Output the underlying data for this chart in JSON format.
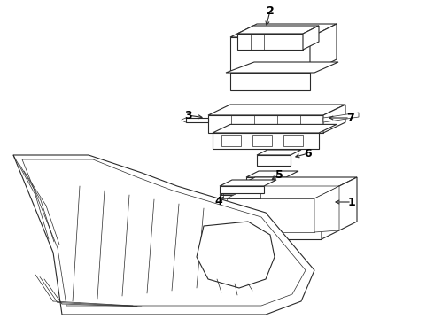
{
  "background_color": "#ffffff",
  "line_color": "#2a2a2a",
  "fig_width": 4.9,
  "fig_height": 3.6,
  "dpi": 100,
  "label_fontsize": 9,
  "label_fontweight": "bold",
  "lw_main": 0.8,
  "lw_thin": 0.5
}
